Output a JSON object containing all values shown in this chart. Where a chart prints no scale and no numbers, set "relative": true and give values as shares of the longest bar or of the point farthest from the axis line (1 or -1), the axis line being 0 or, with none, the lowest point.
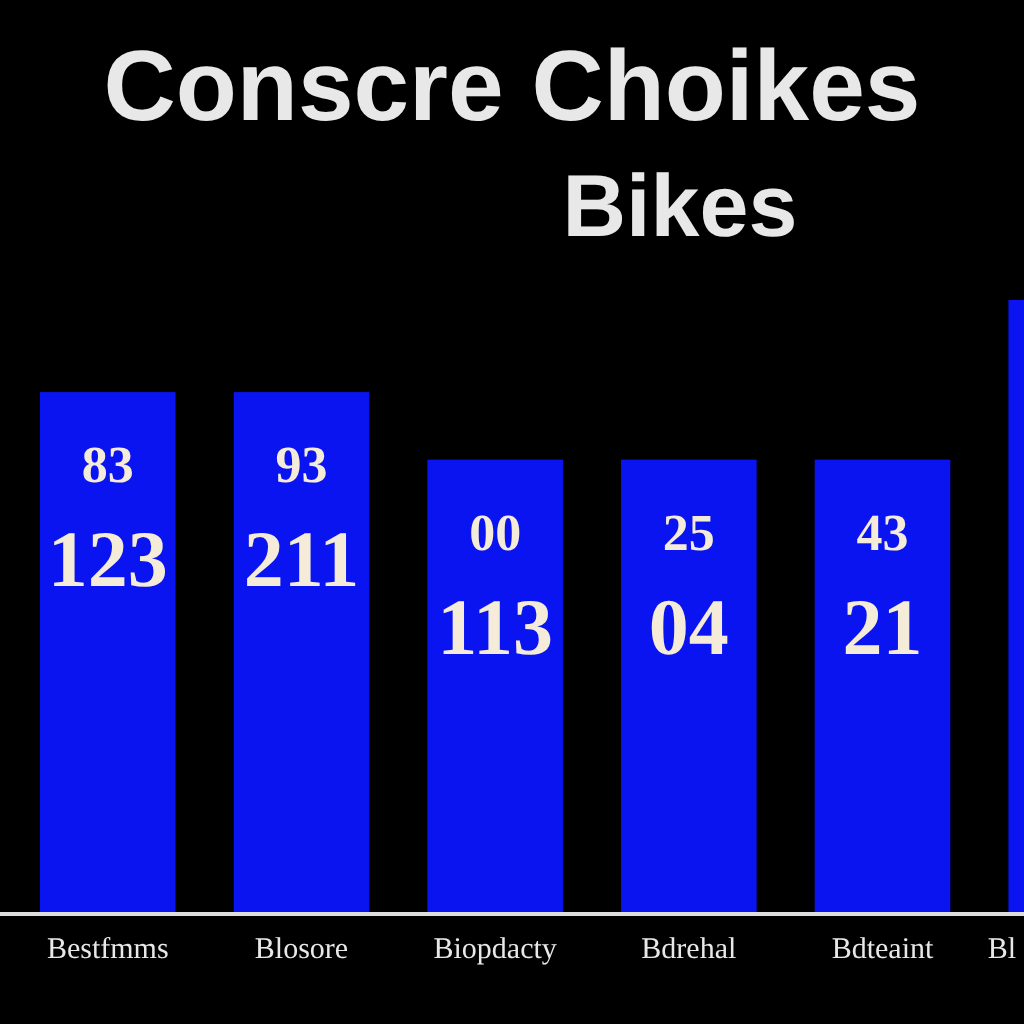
{
  "chart_data": {
    "type": "bar",
    "title": "Conscre Choikes",
    "subtitle": "Bikes",
    "relative": true,
    "categories": [
      "Bestfmms",
      "Blosore",
      "Biopdacty",
      "Bdrehal",
      "Bdteaint",
      "Bl"
    ],
    "values": [
      0.85,
      0.85,
      0.74,
      0.74,
      0.74,
      1
    ],
    "annotations": [
      "83",
      "93",
      "00",
      "25",
      "43",
      "123",
      "211",
      "113",
      "04",
      "21"
    ],
    "color": "#0a14f0"
  }
}
